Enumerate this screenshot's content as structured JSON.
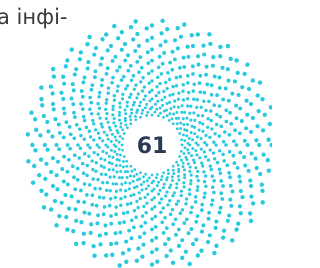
{
  "text_fragment": "а інфі-",
  "badge": {
    "value": 61
  }
}
